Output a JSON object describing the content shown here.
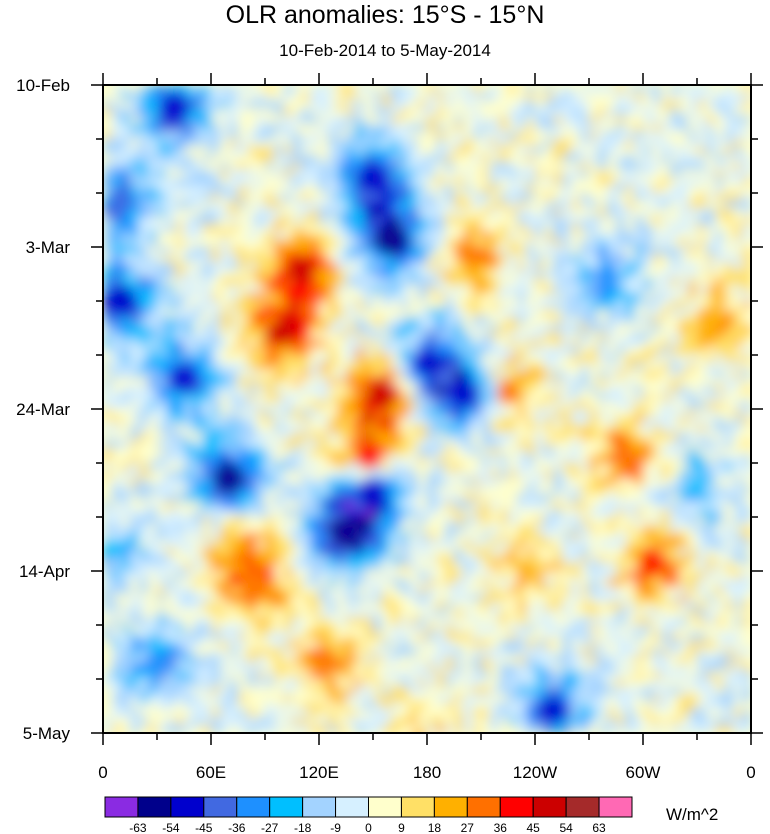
{
  "chart_data": {
    "type": "heatmap",
    "title": "OLR anomalies: 15°S - 15°N",
    "subtitle": "10-Feb-2014 to 5-May-2014",
    "x_ticks": [
      "0",
      "60E",
      "120E",
      "180",
      "120W",
      "60W",
      "0"
    ],
    "y_ticks": [
      "10-Feb",
      "3-Mar",
      "24-Mar",
      "14-Apr",
      "5-May"
    ],
    "colorbar": {
      "units": "W/m^2",
      "levels": [
        "-63",
        "-54",
        "-45",
        "-36",
        "-27",
        "-18",
        "-9",
        "0",
        "9",
        "18",
        "27",
        "36",
        "45",
        "54",
        "63"
      ],
      "colors": [
        "#8a2be2",
        "#00008b",
        "#0000cd",
        "#4169e1",
        "#1e90ff",
        "#00bfff",
        "#a3d3ff",
        "#d6f0ff",
        "#ffffcc",
        "#ffe066",
        "#ffb000",
        "#ff7000",
        "#ff0000",
        "#cc0000",
        "#a52a2a",
        "#ff69b4"
      ]
    },
    "features": [
      {
        "lon": 110,
        "day": 24,
        "value": 40
      },
      {
        "lon": 100,
        "day": 32,
        "value": 38
      },
      {
        "lon": 155,
        "day": 40,
        "value": 42
      },
      {
        "lon": 148,
        "day": 48,
        "value": 36
      },
      {
        "lon": 205,
        "day": 22,
        "value": 24
      },
      {
        "lon": 225,
        "day": 40,
        "value": 25
      },
      {
        "lon": 85,
        "day": 65,
        "value": 26
      },
      {
        "lon": 75,
        "day": 60,
        "value": 22
      },
      {
        "lon": 125,
        "day": 75,
        "value": 24
      },
      {
        "lon": 305,
        "day": 62,
        "value": 30
      },
      {
        "lon": 290,
        "day": 48,
        "value": 28
      },
      {
        "lon": 340,
        "day": 30,
        "value": 20
      },
      {
        "lon": 235,
        "day": 63,
        "value": 18
      },
      {
        "lon": 175,
        "day": 85,
        "value": 15
      },
      {
        "lon": 160,
        "day": 20,
        "value": -50
      },
      {
        "lon": 150,
        "day": 12,
        "value": -45
      },
      {
        "lon": 10,
        "day": 28,
        "value": -45
      },
      {
        "lon": 45,
        "day": 38,
        "value": -40
      },
      {
        "lon": 70,
        "day": 51,
        "value": -48
      },
      {
        "lon": 135,
        "day": 58,
        "value": -50
      },
      {
        "lon": 150,
        "day": 53,
        "value": -45
      },
      {
        "lon": 200,
        "day": 40,
        "value": -45
      },
      {
        "lon": 180,
        "day": 36,
        "value": -40
      },
      {
        "lon": 40,
        "day": 3,
        "value": -45
      },
      {
        "lon": 10,
        "day": 15,
        "value": -35
      },
      {
        "lon": 250,
        "day": 81,
        "value": -40
      },
      {
        "lon": 30,
        "day": 75,
        "value": -30
      },
      {
        "lon": 280,
        "day": 25,
        "value": -25
      },
      {
        "lon": 5,
        "day": 60,
        "value": -22
      },
      {
        "lon": 330,
        "day": 52,
        "value": -18
      }
    ]
  }
}
